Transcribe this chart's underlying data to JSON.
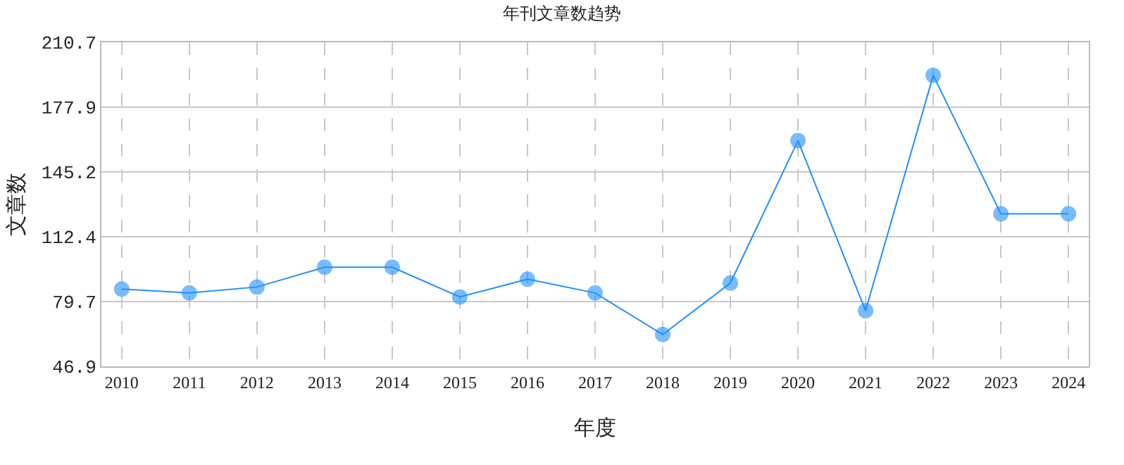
{
  "chart_data": {
    "type": "line",
    "title": "年刊文章数趋势",
    "xlabel": "年度",
    "ylabel": "文章数",
    "categories": [
      "2010",
      "2011",
      "2012",
      "2013",
      "2014",
      "2015",
      "2016",
      "2017",
      "2018",
      "2019",
      "2020",
      "2021",
      "2022",
      "2023",
      "2024"
    ],
    "series": [
      {
        "color": "#1e90ff",
        "values": [
          86,
          84,
          87,
          97,
          97,
          82,
          91,
          84,
          63,
          89,
          161,
          75,
          194,
          124,
          124
        ]
      }
    ],
    "ylim": [
      46.9,
      210.7
    ],
    "yticks": [
      46.9,
      79.7,
      112.4,
      145.2,
      177.9,
      210.7
    ],
    "grid": true,
    "marker": "circle",
    "line_style": "solid"
  }
}
